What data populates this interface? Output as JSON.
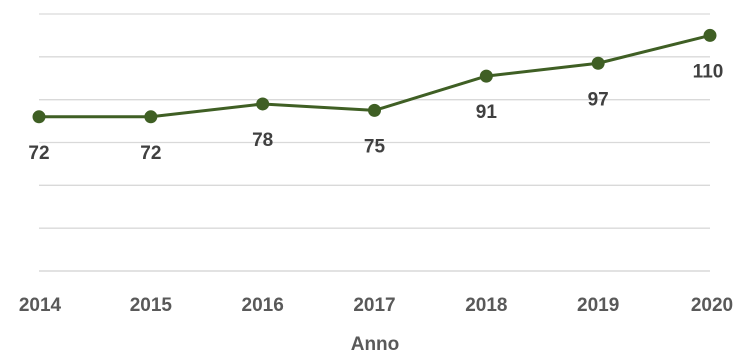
{
  "chart_data": {
    "type": "line",
    "title": "",
    "xlabel": "Anno",
    "ylabel": "",
    "categories": [
      "2014",
      "2015",
      "2016",
      "2017",
      "2018",
      "2019",
      "2020"
    ],
    "series": [
      {
        "values": [
          72,
          72,
          78,
          75,
          91,
          97,
          110
        ]
      }
    ],
    "data_labels": [
      "72",
      "72",
      "78",
      "75",
      "91",
      "97",
      "110"
    ],
    "ylim": [
      0,
      120
    ],
    "gridlines": true,
    "legend": "none",
    "colors": {
      "series": "#3f5f24",
      "grid": "#d9d9d9",
      "text": "#595959"
    }
  }
}
